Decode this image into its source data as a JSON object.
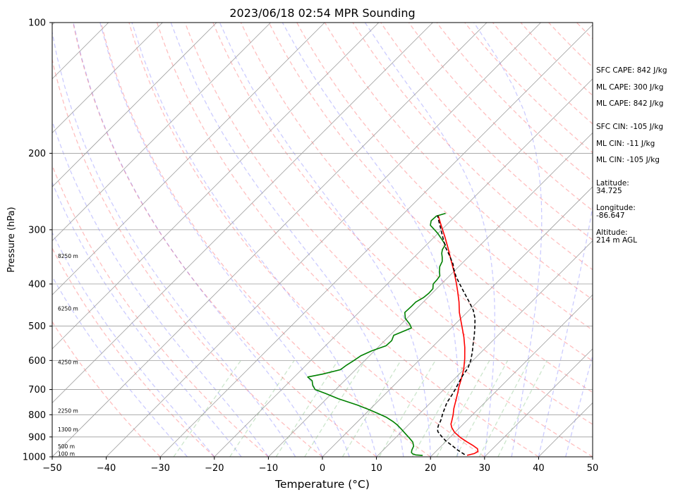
{
  "chart_data": {
    "type": "skew-t",
    "title": "2023/06/18 02:54 MPR Sounding",
    "xlabel": "Temperature (°C)",
    "ylabel": "Pressure (hPa)",
    "xlim": [
      -50,
      50
    ],
    "ylim": [
      1000,
      100
    ],
    "y_scale": "log",
    "grid": true,
    "x_ticks": [
      "−50",
      "−40",
      "−30",
      "−20",
      "−10",
      "0",
      "10",
      "20",
      "30",
      "40",
      "50"
    ],
    "y_ticks": [
      "100",
      "200",
      "300",
      "400",
      "500",
      "600",
      "700",
      "800",
      "900",
      "1000"
    ],
    "height_labels": [
      {
        "p": 985,
        "label": "100 m"
      },
      {
        "p": 948,
        "label": "500 m"
      },
      {
        "p": 866,
        "label": "1300 m"
      },
      {
        "p": 785,
        "label": "2250 m"
      },
      {
        "p": 606,
        "label": "4250 m"
      },
      {
        "p": 456,
        "label": "6250 m"
      },
      {
        "p": 345,
        "label": "8250 m"
      }
    ],
    "series": [
      {
        "color": "#ff0000",
        "style": "solid",
        "points": [
          [
            26.5,
            992
          ],
          [
            27.5,
            983
          ],
          [
            27.8,
            972
          ],
          [
            27.2,
            958
          ],
          [
            25.6,
            940
          ],
          [
            23.9,
            923
          ],
          [
            21.9,
            902
          ],
          [
            19.9,
            878
          ],
          [
            18.5,
            856
          ],
          [
            17.7,
            840
          ],
          [
            17.4,
            830
          ],
          [
            16.9,
            815
          ],
          [
            16.4,
            800
          ],
          [
            15.4,
            775
          ],
          [
            14.2,
            740
          ],
          [
            13.1,
            710
          ],
          [
            12.3,
            690
          ],
          [
            11.2,
            660
          ],
          [
            10.0,
            630
          ],
          [
            8.2,
            595
          ],
          [
            6.1,
            560
          ],
          [
            4.0,
            530
          ],
          [
            1.6,
            500
          ],
          [
            -1.4,
            465
          ],
          [
            -3.4,
            440
          ],
          [
            -5.7,
            415
          ],
          [
            -7.4,
            398
          ],
          [
            -9.9,
            375
          ],
          [
            -12.3,
            355
          ],
          [
            -15.5,
            330
          ],
          [
            -18.0,
            312
          ],
          [
            -20.9,
            293
          ],
          [
            -23.3,
            278
          ]
        ]
      },
      {
        "color": "#008000",
        "style": "solid",
        "points": [
          [
            18.3,
            993
          ],
          [
            16.9,
            990
          ],
          [
            16.2,
            985
          ],
          [
            15.7,
            978
          ],
          [
            15.3,
            965
          ],
          [
            14.9,
            945
          ],
          [
            14.0,
            925
          ],
          [
            12.6,
            905
          ],
          [
            11.1,
            885
          ],
          [
            9.6,
            865
          ],
          [
            8.0,
            845
          ],
          [
            6.6,
            830
          ],
          [
            4.4,
            810
          ],
          [
            2.3,
            795
          ],
          [
            0.1,
            780
          ],
          [
            -3.1,
            760
          ],
          [
            -7.8,
            735
          ],
          [
            -11.1,
            715
          ],
          [
            -13.8,
            700
          ],
          [
            -15.0,
            685
          ],
          [
            -16.0,
            668
          ],
          [
            -17.5,
            655
          ],
          [
            -15.3,
            645
          ],
          [
            -12.8,
            630
          ],
          [
            -12.5,
            615
          ],
          [
            -12.0,
            600
          ],
          [
            -11.6,
            585
          ],
          [
            -10.5,
            570
          ],
          [
            -8.8,
            555
          ],
          [
            -8.7,
            540
          ],
          [
            -9.3,
            525
          ],
          [
            -7.4,
            505
          ],
          [
            -8.4,
            495
          ],
          [
            -10.3,
            480
          ],
          [
            -11.5,
            465
          ],
          [
            -11.4,
            450
          ],
          [
            -11.4,
            440
          ],
          [
            -10.8,
            430
          ],
          [
            -10.6,
            420
          ],
          [
            -10.7,
            410
          ],
          [
            -11.5,
            400
          ],
          [
            -11.6,
            390
          ],
          [
            -11.8,
            383
          ],
          [
            -12.6,
            375
          ],
          [
            -13.5,
            365
          ],
          [
            -14.0,
            355
          ],
          [
            -14.8,
            347
          ],
          [
            -15.6,
            340
          ],
          [
            -16.2,
            333
          ],
          [
            -16.5,
            325
          ],
          [
            -18.3,
            315
          ],
          [
            -20.0,
            306
          ],
          [
            -21.3,
            300
          ],
          [
            -22.9,
            293
          ],
          [
            -23.6,
            286
          ],
          [
            -23.5,
            279
          ],
          [
            -22.3,
            275
          ]
        ]
      },
      {
        "color": "#000000",
        "style": "dashed",
        "points": [
          [
            25.9,
            988
          ],
          [
            23.8,
            965
          ],
          [
            21.9,
            942
          ],
          [
            19.8,
            918
          ],
          [
            18.1,
            895
          ],
          [
            16.7,
            875
          ],
          [
            16.1,
            862
          ],
          [
            15.6,
            845
          ],
          [
            15.3,
            830
          ],
          [
            14.9,
            815
          ],
          [
            14.4,
            800
          ],
          [
            13.7,
            775
          ],
          [
            13.0,
            750
          ],
          [
            12.6,
            725
          ],
          [
            12.1,
            700
          ],
          [
            11.5,
            675
          ],
          [
            10.9,
            650
          ],
          [
            10.5,
            625
          ],
          [
            9.6,
            600
          ],
          [
            8.4,
            575
          ],
          [
            7.0,
            550
          ],
          [
            5.6,
            525
          ],
          [
            4.0,
            500
          ],
          [
            2.6,
            480
          ],
          [
            0.8,
            460
          ],
          [
            -1.5,
            440
          ],
          [
            -4.0,
            420
          ],
          [
            -6.6,
            400
          ],
          [
            -8.6,
            385
          ],
          [
            -10.4,
            370
          ],
          [
            -11.5,
            360
          ],
          [
            -13.6,
            345
          ],
          [
            -15.9,
            330
          ],
          [
            -18.0,
            315
          ],
          [
            -20.1,
            300
          ],
          [
            -21.9,
            288
          ],
          [
            -23.4,
            278
          ]
        ]
      }
    ],
    "info": {
      "sfc_cape": "SFC CAPE: 842 J/kg",
      "ml_cape_1": "ML CAPE: 300 J/kg",
      "ml_cape_2": "ML CAPE: 842 J/kg",
      "sfc_cin": "SFC CIN: -105 J/kg",
      "ml_cin_1": "ML CIN: -11 J/kg",
      "ml_cin_2": "ML CIN: -105 J/kg",
      "latitude_label": "Latitude:",
      "latitude_value": "34.725",
      "longitude_label": "Longitude:",
      "longitude_value": "-86.647",
      "altitude_label": "Altitude:",
      "altitude_value": "214 m AGL"
    }
  }
}
